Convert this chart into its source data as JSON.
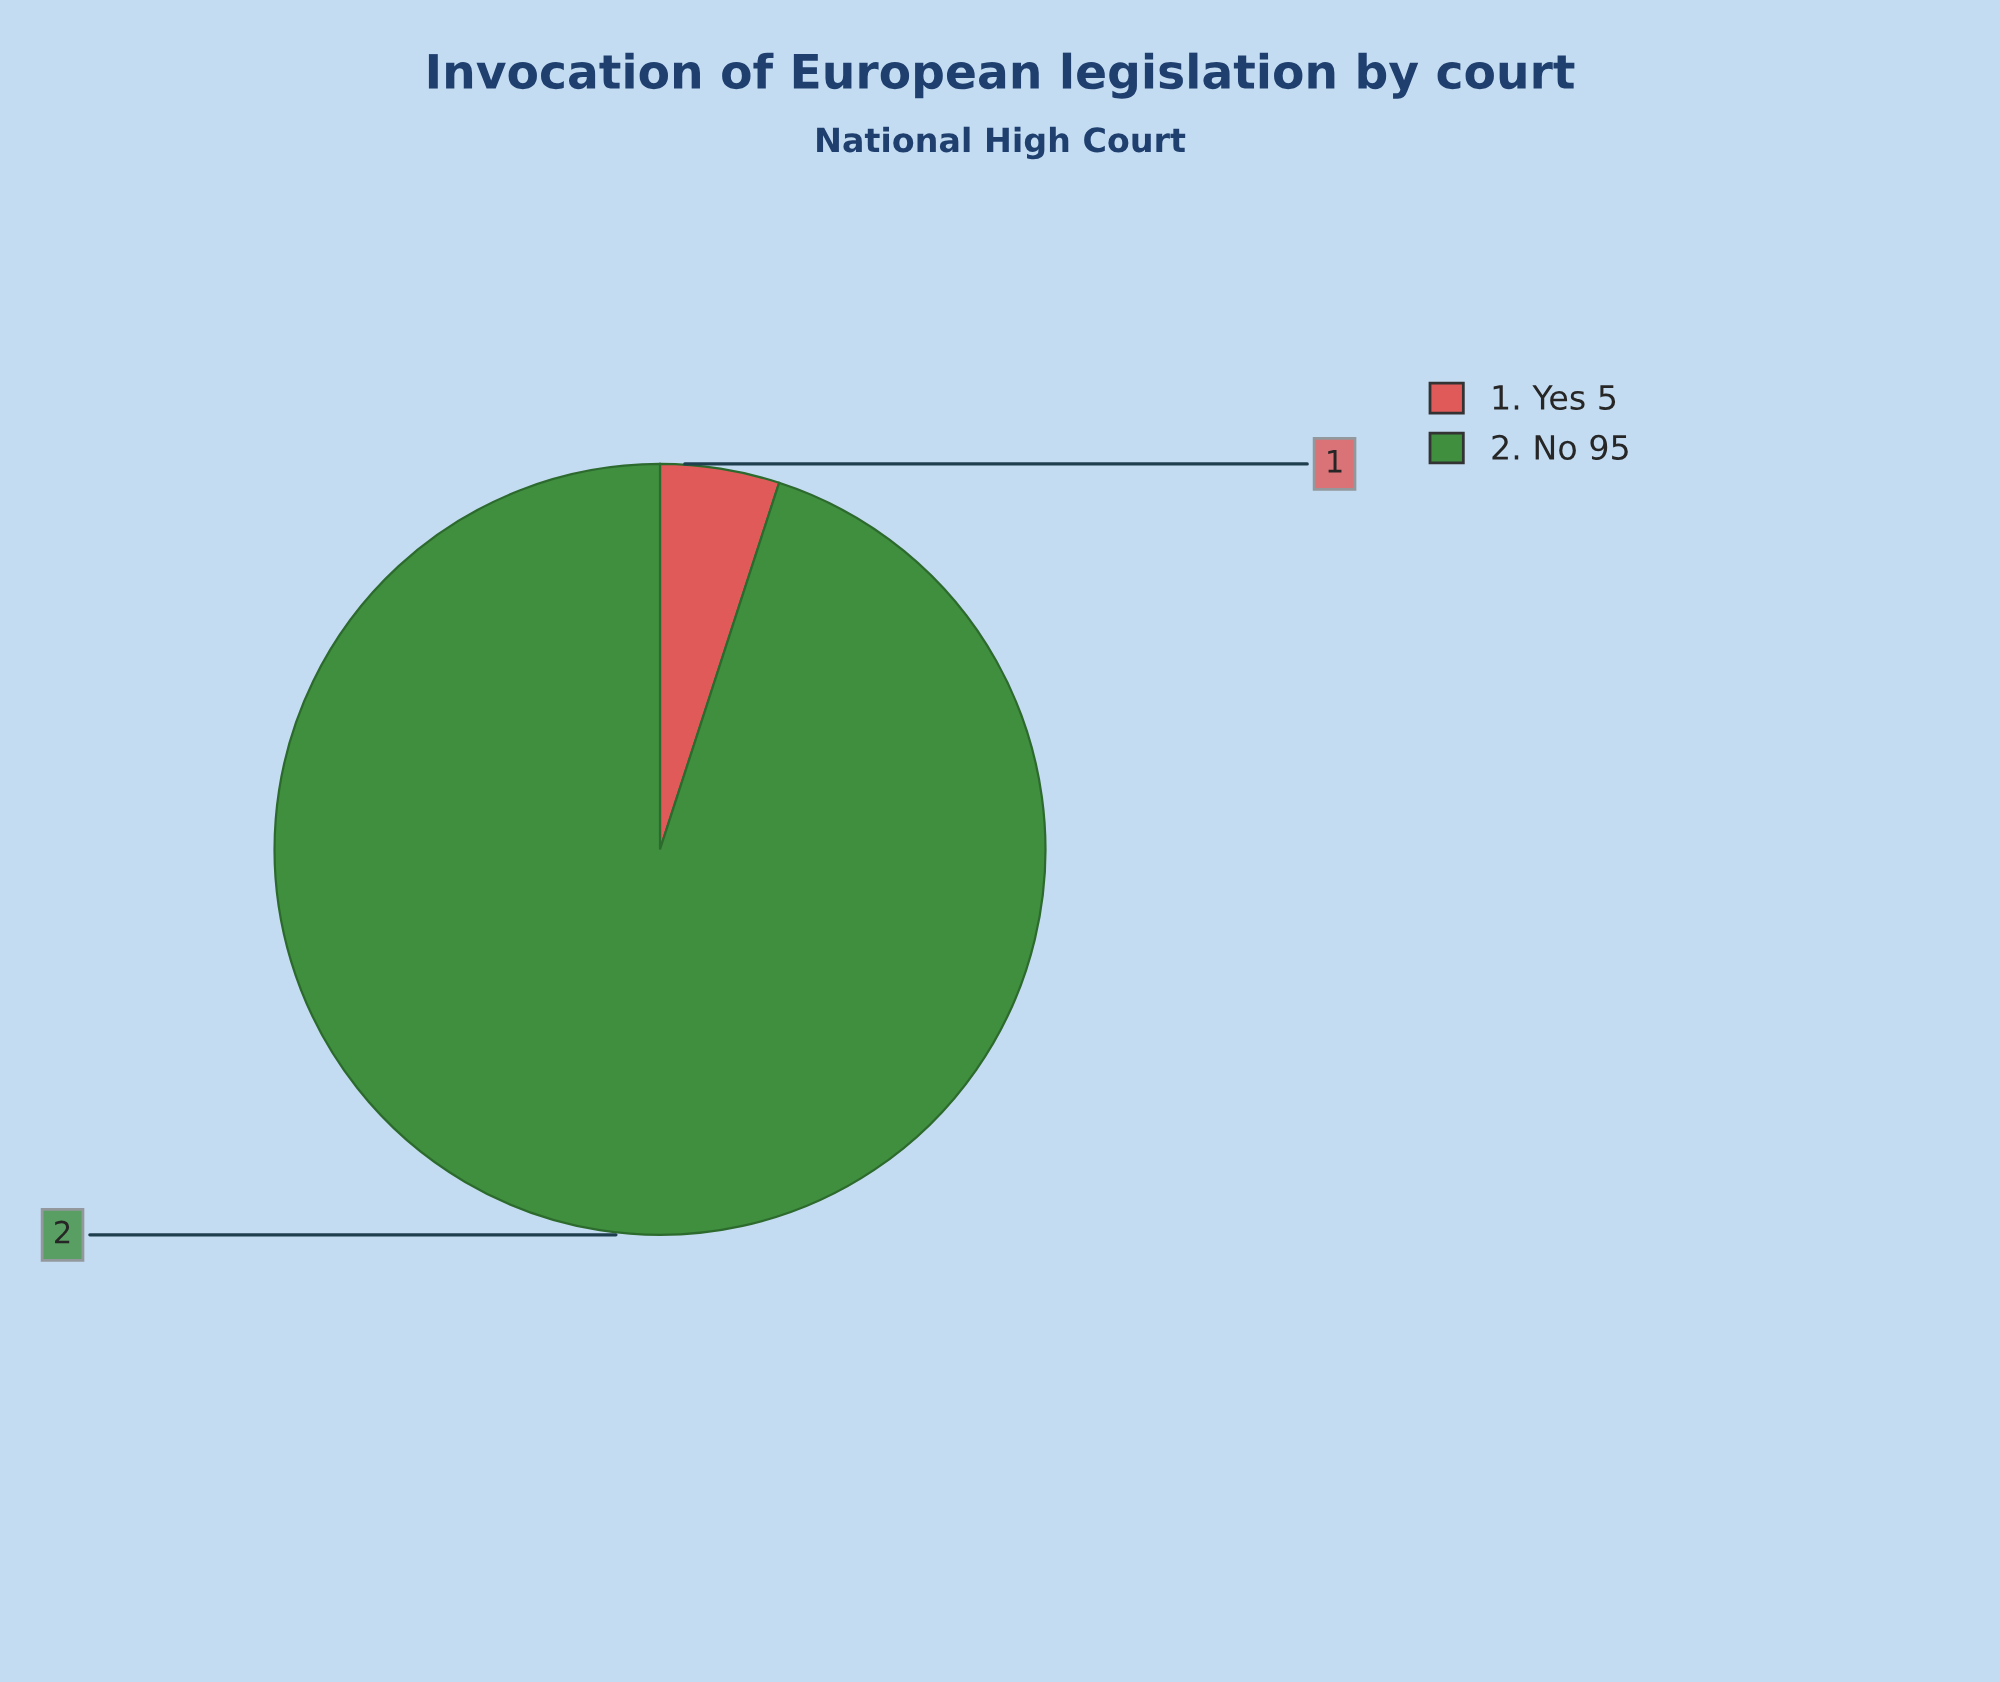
{
  "chart_data": {
    "type": "pie",
    "title": "Invocation of European legislation by court",
    "subtitle": "National High Court",
    "categories": [
      "1. Yes 5",
      "2. No 95"
    ],
    "values": [
      5,
      95
    ],
    "colors": [
      "#e05a5a",
      "#3f8f3f"
    ],
    "annotations": [
      "1",
      "2"
    ],
    "legend": "top right"
  }
}
